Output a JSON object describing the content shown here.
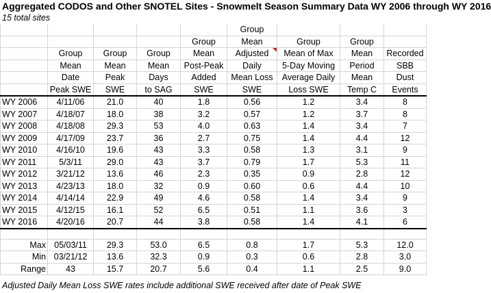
{
  "title": "Aggregated CODOS and Other SNOTEL Sites - Snowmelt Season Summary Data WY 2006 through WY 2016",
  "subtitle": "15 total sites",
  "header_rows": [
    [
      "",
      "",
      "",
      "",
      "",
      "Group",
      "",
      "",
      ""
    ],
    [
      "",
      "",
      "",
      "",
      "Group",
      "Mean",
      "Group",
      "Group",
      ""
    ],
    [
      "",
      "Group",
      "Group",
      "Group",
      "Mean",
      "Adjusted",
      "Mean of Max",
      "Mean",
      "Recorded"
    ],
    [
      "",
      "Mean",
      "Mean",
      "Mean",
      "Post-Peak",
      "Daily",
      "5-Day Moving",
      "Period",
      "SBB"
    ],
    [
      "",
      "Date",
      "Peak",
      "Days",
      "Added",
      "Mean Loss",
      "Average Daily",
      "Mean",
      "Dust"
    ],
    [
      "",
      "Peak SWE",
      "SWE",
      "to SAG",
      "SWE",
      "SWE",
      "Loss SWE",
      "Temp C",
      "Events"
    ]
  ],
  "rows": [
    [
      "WY 2006",
      "4/11/06",
      "21.0",
      "40",
      "1.8",
      "0.56",
      "1.2",
      "3.4",
      "8"
    ],
    [
      "WY 2007",
      "4/18/07",
      "18.0",
      "38",
      "3.2",
      "0.57",
      "1.2",
      "3.7",
      "8"
    ],
    [
      "WY 2008",
      "4/18/08",
      "29.3",
      "53",
      "4.0",
      "0.63",
      "1.4",
      "3.4",
      "7"
    ],
    [
      "WY 2009",
      "4/17/09",
      "23.7",
      "36",
      "2.7",
      "0.75",
      "1.4",
      "4.4",
      "12"
    ],
    [
      "WY 2010",
      "4/16/10",
      "19.6",
      "43",
      "3.3",
      "0.58",
      "1.3",
      "3.1",
      "9"
    ],
    [
      "WY 2011",
      "5/3/11",
      "29.0",
      "43",
      "3.7",
      "0.79",
      "1.7",
      "5.3",
      "11"
    ],
    [
      "WY 2012",
      "3/21/12",
      "13.6",
      "46",
      "2.3",
      "0.35",
      "0.9",
      "2.8",
      "12"
    ],
    [
      "WY 2013",
      "4/23/13",
      "18.0",
      "32",
      "0.9",
      "0.60",
      "0.6",
      "4.4",
      "10"
    ],
    [
      "WY 2014",
      "4/14/14",
      "22.9",
      "49",
      "4.6",
      "0.58",
      "1.4",
      "3.4",
      "9"
    ],
    [
      "WY 2015",
      "4/12/15",
      "16.1",
      "52",
      "6.5",
      "0.51",
      "1.1",
      "3.6",
      "3"
    ],
    [
      "WY 2016",
      "4/20/16",
      "20.7",
      "44",
      "3.8",
      "0.58",
      "1.4",
      "4.1",
      "6"
    ]
  ],
  "summary": [
    [
      "Max",
      "05/03/11",
      "29.3",
      "53.0",
      "6.5",
      "0.8",
      "1.7",
      "5.3",
      "12.0"
    ],
    [
      "Min",
      "03/21/12",
      "13.6",
      "32.3",
      "0.9",
      "0.3",
      "0.6",
      "2.8",
      "3.0"
    ],
    [
      "Range",
      "43",
      "15.7",
      "20.7",
      "5.6",
      "0.4",
      "1.1",
      "2.5",
      "9.0"
    ]
  ],
  "footnote": "Adjusted Daily Mean Loss SWE rates include additional SWE received after date of Peak SWE",
  "colors": {
    "gridline": "#d4d4d4",
    "comment_flag": "#e0201c"
  }
}
